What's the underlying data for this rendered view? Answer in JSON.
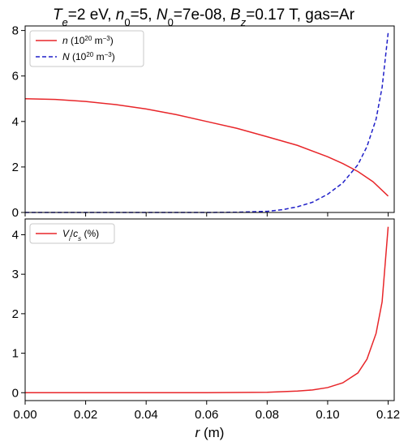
{
  "figure": {
    "title_parts": [
      {
        "t": "T",
        "it": true
      },
      {
        "t": "e",
        "it": true,
        "sub": true
      },
      {
        "t": "=2 eV,  "
      },
      {
        "t": "n",
        "it": true
      },
      {
        "t": "0",
        "sub": true
      },
      {
        "t": "=5,  "
      },
      {
        "t": "N",
        "it": true
      },
      {
        "t": "0",
        "sub": true
      },
      {
        "t": "=7e-08,  "
      },
      {
        "t": "B",
        "it": true
      },
      {
        "t": "z",
        "it": true,
        "sub": true
      },
      {
        "t": "=0.17 T,  gas=Ar"
      }
    ]
  },
  "chart_data": [
    {
      "type": "line",
      "xlim": [
        0,
        0.122
      ],
      "ylim": [
        0,
        8.2
      ],
      "xticks": [
        0.0,
        0.02,
        0.04,
        0.06,
        0.08,
        0.1,
        0.12
      ],
      "yticks": [
        0,
        2,
        4,
        6,
        8
      ],
      "show_xtick_labels": false,
      "grid": false,
      "legend_position": "top-left",
      "series": [
        {
          "name_parts": [
            {
              "t": "n",
              "it": true
            },
            {
              "t": " (10"
            },
            {
              "t": "20",
              "sup": true
            },
            {
              "t": " m"
            },
            {
              "t": "−3",
              "sup": true
            },
            {
              "t": ")"
            }
          ],
          "color": "#e8262a",
          "dash": "solid",
          "x": [
            0,
            0.01,
            0.02,
            0.03,
            0.04,
            0.05,
            0.06,
            0.07,
            0.08,
            0.09,
            0.1,
            0.105,
            0.11,
            0.115,
            0.12
          ],
          "y": [
            5.0,
            4.97,
            4.88,
            4.74,
            4.55,
            4.3,
            4.0,
            3.7,
            3.33,
            2.95,
            2.45,
            2.15,
            1.8,
            1.35,
            0.72
          ]
        },
        {
          "name_parts": [
            {
              "t": "N",
              "it": true
            },
            {
              "t": " (10"
            },
            {
              "t": "20",
              "sup": true
            },
            {
              "t": " m"
            },
            {
              "t": "−3",
              "sup": true
            },
            {
              "t": ")"
            }
          ],
          "color": "#1f1fc8",
          "dash": "dashed",
          "x": [
            0,
            0.06,
            0.07,
            0.08,
            0.085,
            0.09,
            0.095,
            0.1,
            0.105,
            0.11,
            0.113,
            0.116,
            0.118,
            0.12
          ],
          "y": [
            0,
            0,
            0.01,
            0.05,
            0.12,
            0.25,
            0.45,
            0.8,
            1.3,
            2.1,
            2.9,
            4.1,
            5.5,
            7.9
          ]
        }
      ]
    },
    {
      "type": "line",
      "xlim": [
        0,
        0.122
      ],
      "ylim": [
        -0.2,
        4.4
      ],
      "xticks": [
        0.0,
        0.02,
        0.04,
        0.06,
        0.08,
        0.1,
        0.12
      ],
      "xtick_labels": [
        "0.00",
        "0.02",
        "0.04",
        "0.06",
        "0.08",
        "0.10",
        "0.12"
      ],
      "yticks": [
        0,
        1,
        2,
        3,
        4
      ],
      "show_xtick_labels": true,
      "xlabel_parts": [
        {
          "t": "r",
          "it": true
        },
        {
          "t": " (m)"
        }
      ],
      "grid": false,
      "legend_position": "top-left",
      "series": [
        {
          "name_parts": [
            {
              "t": "V",
              "it": true
            },
            {
              "t": "i",
              "it": true,
              "sub": true
            },
            {
              "t": "/"
            },
            {
              "t": "c",
              "it": true
            },
            {
              "t": "s",
              "it": true,
              "sub": true
            },
            {
              "t": " (%)"
            }
          ],
          "color": "#e8262a",
          "dash": "solid",
          "x": [
            0,
            0.06,
            0.08,
            0.09,
            0.095,
            0.1,
            0.105,
            0.11,
            0.113,
            0.116,
            0.118,
            0.12
          ],
          "y": [
            0,
            0,
            0.01,
            0.04,
            0.07,
            0.13,
            0.25,
            0.5,
            0.85,
            1.5,
            2.3,
            4.2
          ]
        }
      ]
    }
  ]
}
